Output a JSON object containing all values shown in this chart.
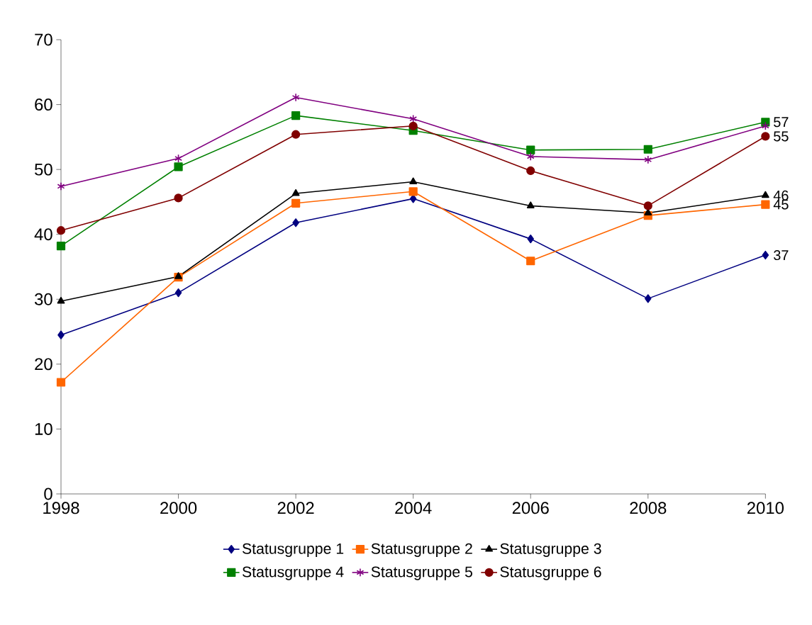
{
  "chart_data": {
    "type": "line",
    "x": [
      1998,
      2000,
      2002,
      2004,
      2006,
      2008,
      2010
    ],
    "xlim": [
      1998,
      2010
    ],
    "xticks": [
      1998,
      2000,
      2002,
      2004,
      2006,
      2008,
      2010
    ],
    "ylim": [
      0,
      70
    ],
    "yticks": [
      0,
      10,
      20,
      30,
      40,
      50,
      60,
      70
    ],
    "grid": false,
    "legend": "bottom",
    "line_style": "solid",
    "series": [
      {
        "name": "Statusgruppe 1",
        "color": "#000080",
        "marker": "diamond",
        "values": [
          24.5,
          31.0,
          41.8,
          45.5,
          39.3,
          30.1,
          36.8
        ],
        "value_labels": [
          null,
          null,
          null,
          null,
          null,
          null,
          "37"
        ]
      },
      {
        "name": "Statusgruppe 2",
        "color": "#ff6600",
        "marker": "square",
        "values": [
          17.2,
          33.4,
          44.8,
          46.6,
          35.9,
          42.9,
          44.6
        ],
        "value_labels": [
          null,
          null,
          null,
          null,
          null,
          null,
          "45"
        ]
      },
      {
        "name": "Statusgruppe 3",
        "color": "#000000",
        "marker": "triangle",
        "values": [
          29.7,
          33.5,
          46.3,
          48.1,
          44.4,
          43.3,
          46.0
        ],
        "value_labels": [
          null,
          null,
          null,
          null,
          null,
          null,
          "46"
        ]
      },
      {
        "name": "Statusgruppe 4",
        "color": "#008000",
        "marker": "square",
        "values": [
          38.2,
          50.4,
          58.3,
          56.0,
          53.0,
          53.1,
          57.3
        ],
        "value_labels": [
          null,
          null,
          null,
          null,
          null,
          null,
          "57"
        ]
      },
      {
        "name": "Statusgruppe 5",
        "color": "#800080",
        "marker": "cross",
        "values": [
          47.4,
          51.7,
          61.1,
          57.8,
          52.0,
          51.5,
          56.7
        ]
      },
      {
        "name": "Statusgruppe 6",
        "color": "#800000",
        "marker": "circle",
        "values": [
          40.6,
          45.6,
          55.4,
          56.7,
          49.8,
          44.4,
          55.1
        ],
        "value_labels": [
          null,
          null,
          null,
          null,
          null,
          null,
          "55"
        ]
      }
    ]
  }
}
